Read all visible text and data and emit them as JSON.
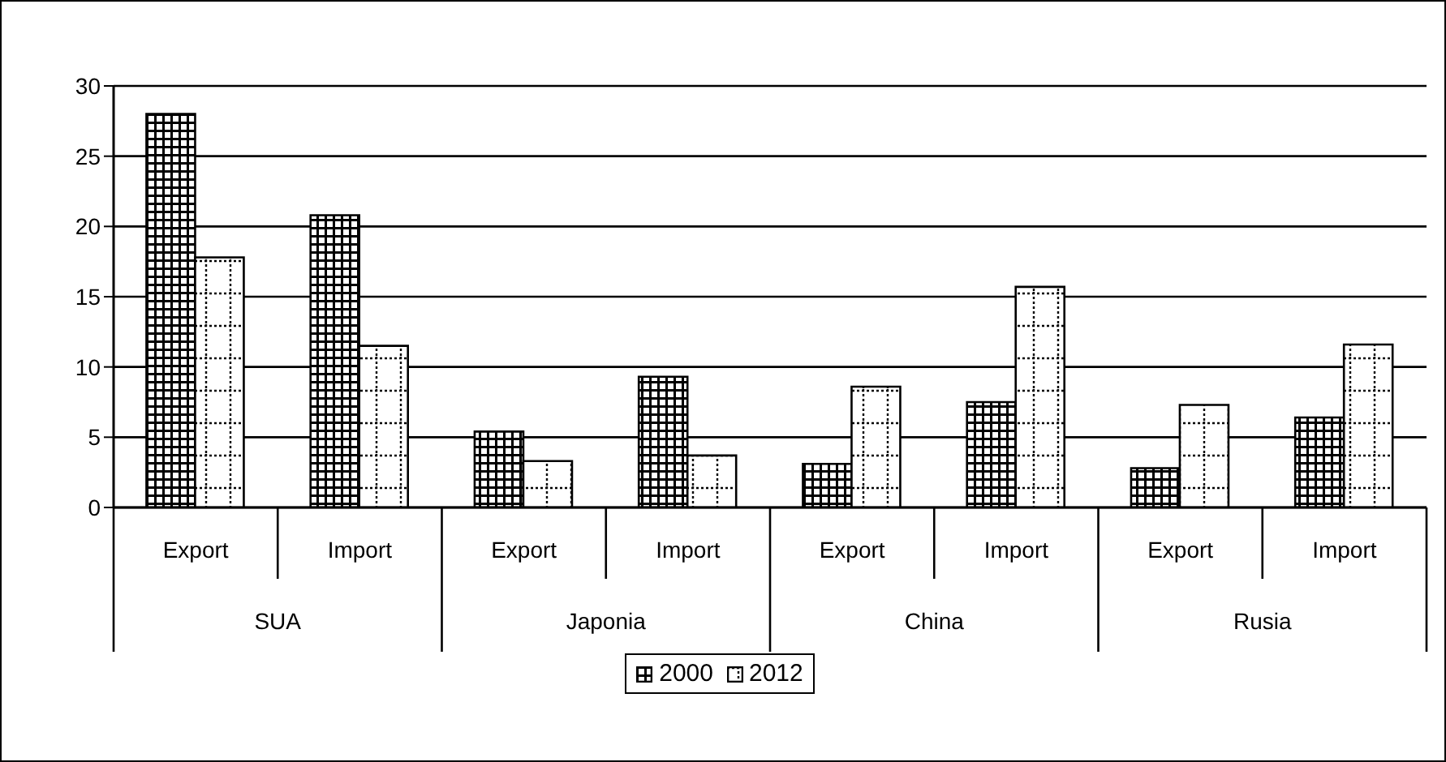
{
  "chart_data": {
    "type": "bar",
    "categories": [
      "Export",
      "Import",
      "Export",
      "Import",
      "Export",
      "Import",
      "Export",
      "Import"
    ],
    "annotations": [
      "SUA",
      "Japonia",
      "China",
      "Rusia"
    ],
    "series": [
      {
        "name": "2000",
        "color": "#000000",
        "values": [
          28,
          20.8,
          5.4,
          9.3,
          3.1,
          7.5,
          2.8,
          6.4
        ]
      },
      {
        "name": "2012",
        "color": "#000000",
        "values": [
          17.8,
          11.5,
          3.3,
          3.7,
          8.6,
          15.7,
          7.3,
          11.6
        ]
      }
    ],
    "ylim": [
      0,
      30
    ],
    "yticks": [
      0,
      5,
      10,
      15,
      20,
      25,
      30
    ],
    "grid": "y",
    "legend": "bottom"
  }
}
